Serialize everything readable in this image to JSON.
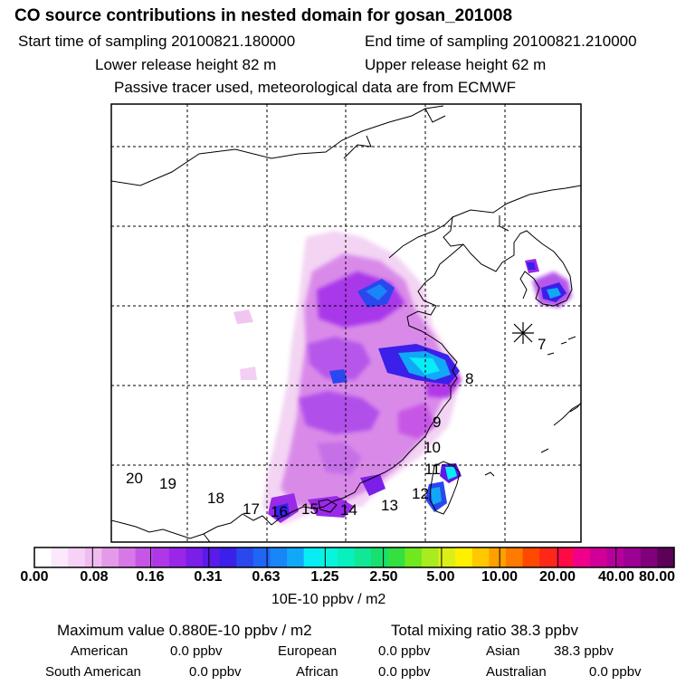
{
  "title": "CO  source contributions in nested domain for gosan_201008",
  "start_time": "Start time of sampling 20100821.180000",
  "end_time": "End time of sampling 20100821.210000",
  "lower_release": "Lower release height   82 m",
  "upper_release": "Upper release height   62 m",
  "tracer_note": "Passive tracer used, meteorological data are from ECMWF",
  "receptor_marker": "receptor-star",
  "trajectory_labels": [
    "7",
    "8",
    "9",
    "10",
    "11",
    "12",
    "13",
    "14",
    "15",
    "16",
    "17",
    "18",
    "19",
    "20"
  ],
  "colorbar": {
    "ticks": [
      "0.00",
      "0.08",
      "0.16",
      "0.31",
      "0.63",
      "1.25",
      "2.50",
      "5.00",
      "10.00",
      "20.00",
      "40.00",
      "80.00"
    ],
    "unit": "10E-10 ppbv / m2",
    "colors": [
      "#ffffff",
      "#fbe8fb",
      "#f6d2f6",
      "#f0bcf0",
      "#e59ae9",
      "#d878e6",
      "#c656e6",
      "#b037e8",
      "#9a26e8",
      "#7a1ee8",
      "#5a1ae8",
      "#3a20e8",
      "#2a48ee",
      "#2066f4",
      "#1886f6",
      "#12a8f8",
      "#08ecf6",
      "#08f4de",
      "#08f0be",
      "#10e896",
      "#18e070",
      "#34e040",
      "#70e820",
      "#a8ec20",
      "#dcee18",
      "#fff000",
      "#ffc800",
      "#ffa000",
      "#ff7a00",
      "#ff4800",
      "#ff2818",
      "#ff0a44",
      "#f0008a",
      "#d00096",
      "#b6009c",
      "#9c0094",
      "#80007c",
      "#5c0058"
    ]
  },
  "maximum_value": "Maximum value  0.880E-10 ppbv / m2",
  "total_mixing_ratio": "Total mixing ratio       38.3 ppbv",
  "regions": [
    {
      "name": "American",
      "value": "0.0 ppbv"
    },
    {
      "name": "European",
      "value": "0.0 ppbv"
    },
    {
      "name": "Asian",
      "value": "38.3 ppbv"
    },
    {
      "name": "South American",
      "value": "0.0 ppbv"
    },
    {
      "name": "African",
      "value": "0.0 ppbv"
    },
    {
      "name": "Australian",
      "value": "0.0 ppbv"
    }
  ]
}
